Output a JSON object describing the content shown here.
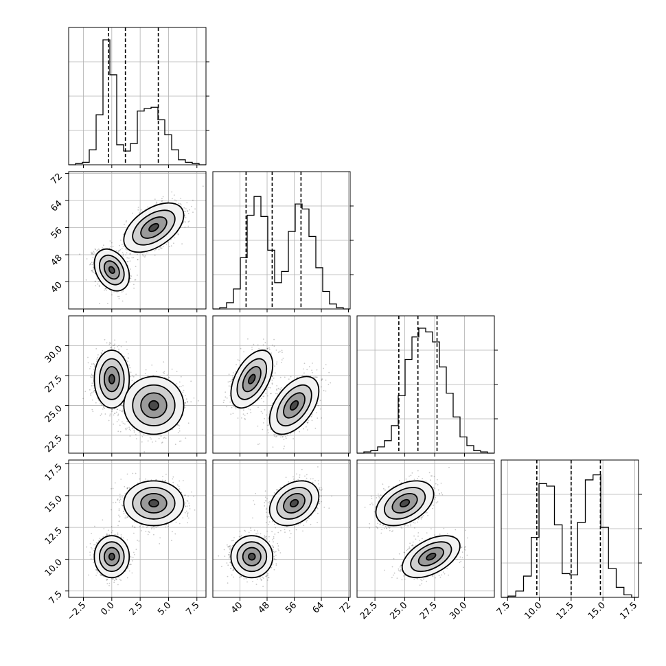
{
  "chart_data": {
    "type": "corner",
    "grid": true,
    "parameters": [
      {
        "range": [
          -3.8,
          8.3
        ],
        "ticks": [
          -2.5,
          0.0,
          2.5,
          5.0,
          7.5
        ],
        "tick_labels": [
          "−2.5",
          "0.0",
          "2.5",
          "5.0",
          "7.5"
        ],
        "quantiles": [
          -0.3,
          1.2,
          4.1
        ],
        "modes": [
          {
            "mean": 0.0,
            "sd": 0.7,
            "weight": 0.43
          },
          {
            "mean": 3.7,
            "sd": 1.2,
            "weight": 0.57
          }
        ]
      },
      {
        "range": [
          32,
          72.5
        ],
        "ticks": [
          40,
          48,
          56,
          64,
          72
        ],
        "tick_labels": [
          "40",
          "48",
          "56",
          "64",
          "72"
        ],
        "quantiles": [
          41.8,
          49.5,
          58.0
        ],
        "modes": [
          {
            "mean": 43.5,
            "sd": 2.8,
            "weight": 0.47
          },
          {
            "mean": 56.0,
            "sd": 3.3,
            "weight": 0.53
          }
        ]
      },
      {
        "range": [
          21.0,
          32.5
        ],
        "ticks": [
          22.5,
          25.0,
          27.5,
          30.0
        ],
        "tick_labels": [
          "22.5",
          "25.0",
          "27.5",
          "30.0"
        ],
        "quantiles": [
          24.5,
          26.1,
          27.7
        ],
        "modes": [
          {
            "mean": 27.2,
            "sd": 1.1,
            "weight": 0.5
          },
          {
            "mean": 25.0,
            "sd": 1.1,
            "weight": 0.5
          }
        ]
      },
      {
        "range": [
          7.0,
          17.8
        ],
        "ticks": [
          7.5,
          10.0,
          12.5,
          15.0,
          17.5
        ],
        "tick_labels": [
          "7.5",
          "10.0",
          "12.5",
          "15.0",
          "17.5"
        ],
        "quantiles": [
          9.8,
          12.5,
          14.8
        ],
        "modes": [
          {
            "mean": 10.2,
            "sd": 0.75,
            "weight": 0.5
          },
          {
            "mean": 14.4,
            "sd": 0.8,
            "weight": 0.5
          }
        ]
      }
    ],
    "histograms": [
      [
        0.01,
        0.02,
        0.12,
        0.4,
        1.0,
        0.72,
        0.16,
        0.11,
        0.17,
        0.43,
        0.45,
        0.46,
        0.36,
        0.24,
        0.12,
        0.04,
        0.02,
        0.01
      ],
      [
        0.01,
        0.05,
        0.16,
        0.41,
        0.75,
        0.9,
        0.74,
        0.47,
        0.21,
        0.3,
        0.62,
        0.84,
        0.8,
        0.58,
        0.33,
        0.14,
        0.04,
        0.01
      ],
      [
        0.01,
        0.02,
        0.05,
        0.1,
        0.22,
        0.46,
        0.75,
        0.93,
        1.0,
        0.97,
        0.89,
        0.69,
        0.48,
        0.29,
        0.13,
        0.06,
        0.02,
        0.01
      ],
      [
        0.01,
        0.05,
        0.17,
        0.48,
        0.91,
        0.89,
        0.58,
        0.19,
        0.18,
        0.6,
        0.94,
        0.98,
        0.56,
        0.23,
        0.08,
        0.02
      ]
    ],
    "correlations": [
      {
        "x": 0,
        "y": 1,
        "rho": [
          -0.3,
          0.5
        ]
      },
      {
        "x": 0,
        "y": 2,
        "rho": [
          0.0,
          0.0
        ]
      },
      {
        "x": 1,
        "y": 2,
        "rho": [
          0.5,
          0.5
        ]
      },
      {
        "x": 0,
        "y": 3,
        "rho": [
          0.0,
          0.0
        ]
      },
      {
        "x": 1,
        "y": 3,
        "rho": [
          0.0,
          0.3
        ]
      },
      {
        "x": 2,
        "y": 3,
        "rho": [
          0.5,
          0.4
        ]
      }
    ]
  }
}
